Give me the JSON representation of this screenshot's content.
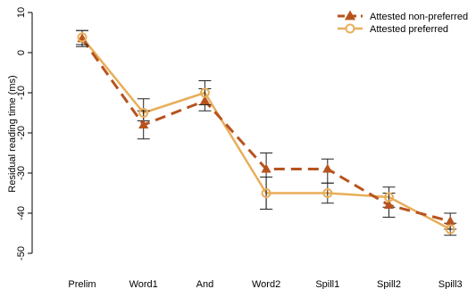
{
  "chart_data": {
    "type": "line",
    "title": "",
    "xlabel": "",
    "ylabel": "Residual reading time (ms)",
    "categories": [
      "Prelim",
      "Word1",
      "And",
      "Word2",
      "Spill1",
      "Spill2",
      "Spill3"
    ],
    "yticks": [
      10,
      0,
      -10,
      -20,
      -30,
      -40,
      -50
    ],
    "ylim": [
      -52,
      10
    ],
    "grid": false,
    "legend_position": "top-right",
    "series": [
      {
        "name": "Attested non-preferred",
        "color": "#b8531d",
        "line_style": "dashed",
        "marker": "triangle",
        "values": [
          3.5,
          -18,
          -12,
          -29,
          -29,
          -38,
          -42
        ],
        "err_low": [
          1.5,
          -21.5,
          -14.5,
          -39,
          -32.5,
          -41,
          -44
        ],
        "err_high": [
          5.5,
          -14.5,
          -9,
          -25,
          -26.5,
          -35,
          -40
        ]
      },
      {
        "name": "Attested preferred",
        "color": "#e8ae5a",
        "line_style": "solid",
        "marker": "circle-open",
        "values": [
          3.8,
          -15,
          -10,
          -35,
          -35,
          -36,
          -44
        ],
        "err_low": [
          2,
          -17,
          -13,
          -39,
          -37.5,
          -38.5,
          -45.5
        ],
        "err_high": [
          5.5,
          -11.5,
          -7,
          -31,
          -32.5,
          -33.5,
          -42.5
        ]
      }
    ]
  }
}
